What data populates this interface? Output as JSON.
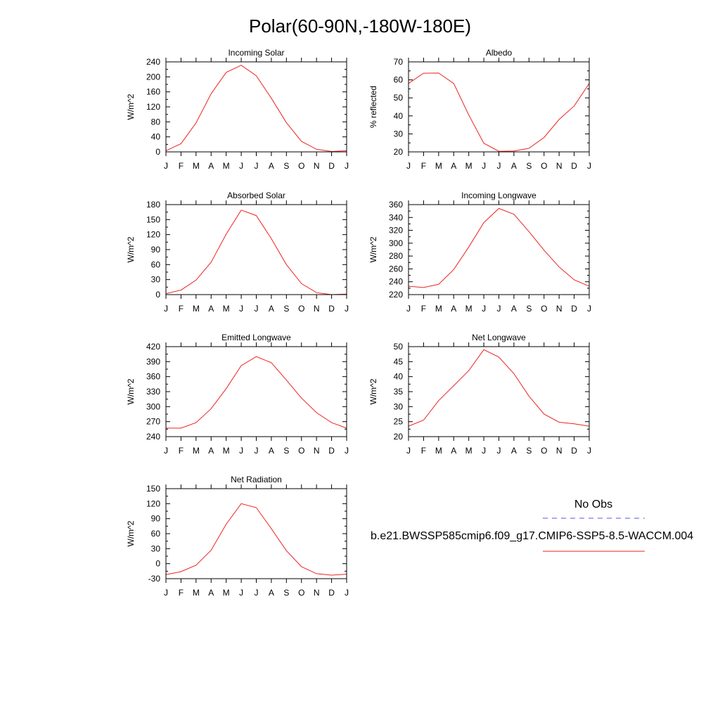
{
  "figure": {
    "title": "Polar(60-90N,-180W-180E)"
  },
  "legend": {
    "obs_label": "No Obs",
    "obs_color": "#5555ee",
    "model_label": "b.e21.BWSSP585cmip6.f09_g17.CMIP6-SSP5-8.5-WACCM.004",
    "model_color": "#ee2222"
  },
  "chart_data": [
    {
      "type": "line",
      "title": "Incoming Solar",
      "ylabel": "W/m^2",
      "xlabel": "",
      "categories": [
        "J",
        "F",
        "M",
        "A",
        "M",
        "J",
        "J",
        "A",
        "S",
        "O",
        "N",
        "D",
        "J"
      ],
      "ylim": [
        0,
        240
      ],
      "yticks": [
        0,
        40,
        80,
        120,
        160,
        200,
        240
      ],
      "series": [
        {
          "name": "b.e21.BWSSP585cmip6.f09_g17.CMIP6-SSP5-8.5-WACCM.004",
          "values": [
            3,
            22,
            77,
            155,
            212,
            231,
            203,
            143,
            78,
            28,
            7,
            1,
            3
          ]
        }
      ]
    },
    {
      "type": "line",
      "title": "Albedo",
      "ylabel": "% reflected",
      "xlabel": "",
      "categories": [
        "J",
        "F",
        "M",
        "A",
        "M",
        "J",
        "J",
        "A",
        "S",
        "O",
        "N",
        "D",
        "J"
      ],
      "ylim": [
        20,
        70
      ],
      "yticks": [
        20,
        30,
        40,
        50,
        60,
        70
      ],
      "series": [
        {
          "name": "b.e21.BWSSP585cmip6.f09_g17.CMIP6-SSP5-8.5-WACCM.004",
          "values": [
            58,
            63.7,
            63.8,
            58,
            40.5,
            24.8,
            20.3,
            20.5,
            22,
            28,
            38,
            45.5,
            58
          ]
        }
      ]
    },
    {
      "type": "line",
      "title": "Absorbed Solar",
      "ylabel": "W/m^2",
      "xlabel": "",
      "categories": [
        "J",
        "F",
        "M",
        "A",
        "M",
        "J",
        "J",
        "A",
        "S",
        "O",
        "N",
        "D",
        "J"
      ],
      "ylim": [
        0,
        180
      ],
      "yticks": [
        0,
        30,
        60,
        90,
        120,
        150,
        180
      ],
      "series": [
        {
          "name": "b.e21.BWSSP585cmip6.f09_g17.CMIP6-SSP5-8.5-WACCM.004",
          "values": [
            2,
            9,
            29,
            65,
            121,
            169,
            158,
            112,
            60,
            22,
            4,
            0,
            1
          ]
        }
      ]
    },
    {
      "type": "line",
      "title": "Incoming Longwave",
      "ylabel": "W/m^2",
      "xlabel": "",
      "categories": [
        "J",
        "F",
        "M",
        "A",
        "M",
        "J",
        "J",
        "A",
        "S",
        "O",
        "N",
        "D",
        "J"
      ],
      "ylim": [
        220,
        360
      ],
      "yticks": [
        220,
        240,
        260,
        280,
        300,
        320,
        340,
        360
      ],
      "series": [
        {
          "name": "b.e21.BWSSP585cmip6.f09_g17.CMIP6-SSP5-8.5-WACCM.004",
          "values": [
            233,
            231,
            236,
            259,
            294,
            332,
            354,
            345,
            318,
            289,
            263,
            243,
            233
          ]
        }
      ]
    },
    {
      "type": "line",
      "title": "Emitted Longwave",
      "ylabel": "W/m^2",
      "xlabel": "",
      "categories": [
        "J",
        "F",
        "M",
        "A",
        "M",
        "J",
        "J",
        "A",
        "S",
        "O",
        "N",
        "D",
        "J"
      ],
      "ylim": [
        240,
        420
      ],
      "yticks": [
        240,
        270,
        300,
        330,
        360,
        390,
        420
      ],
      "series": [
        {
          "name": "b.e21.BWSSP585cmip6.f09_g17.CMIP6-SSP5-8.5-WACCM.004",
          "values": [
            257,
            257,
            268,
            296,
            336,
            382,
            400,
            388,
            353,
            317,
            288,
            268,
            257
          ]
        }
      ]
    },
    {
      "type": "line",
      "title": "Net Longwave",
      "ylabel": "W/m^2",
      "xlabel": "",
      "categories": [
        "J",
        "F",
        "M",
        "A",
        "M",
        "J",
        "J",
        "A",
        "S",
        "O",
        "N",
        "D",
        "J"
      ],
      "ylim": [
        20,
        50
      ],
      "yticks": [
        20,
        25,
        30,
        35,
        40,
        45,
        50
      ],
      "series": [
        {
          "name": "b.e21.BWSSP585cmip6.f09_g17.CMIP6-SSP5-8.5-WACCM.004",
          "values": [
            23.5,
            25.5,
            32,
            37,
            42,
            49,
            46.5,
            41,
            33.5,
            27.5,
            24.8,
            24.3,
            23.5
          ]
        }
      ]
    },
    {
      "type": "line",
      "title": "Net Radiation",
      "ylabel": "W/m^2",
      "xlabel": "",
      "categories": [
        "J",
        "F",
        "M",
        "A",
        "M",
        "J",
        "J",
        "A",
        "S",
        "O",
        "N",
        "D",
        "J"
      ],
      "ylim": [
        -30,
        150
      ],
      "yticks": [
        -30,
        0,
        30,
        60,
        90,
        120,
        150
      ],
      "series": [
        {
          "name": "b.e21.BWSSP585cmip6.f09_g17.CMIP6-SSP5-8.5-WACCM.004",
          "values": [
            -22,
            -16,
            -3,
            27,
            79,
            120,
            112,
            70,
            26,
            -6,
            -20,
            -23,
            -21
          ]
        }
      ]
    }
  ]
}
